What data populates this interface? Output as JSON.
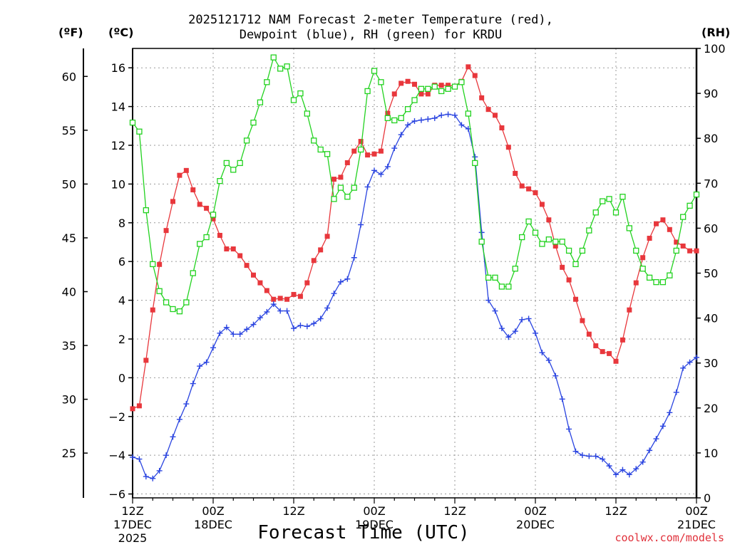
{
  "title_line1": "2025121712 NAM Forecast 2-meter Temperature (red),",
  "title_line2": "Dewpoint (blue), RH (green) for KRDU",
  "unit_f": "(ºF)",
  "unit_c": "(ºC)",
  "unit_rh": "(RH)",
  "xlabel": "Forecast Time (UTC)",
  "credit": "coolwx.com/models",
  "colors": {
    "temperature": "#e8373c",
    "dewpoint": "#2a44e0",
    "rh": "#22d21f",
    "grid": "#9a9a9a"
  },
  "chart_data": {
    "type": "line",
    "title": "2025121712 NAM Forecast 2-meter Temperature (red), Dewpoint (blue), RH (green) for KRDU",
    "xlabel": "Forecast Time (UTC)",
    "x_unit": "forecast hour",
    "xlim": [
      0,
      84
    ],
    "x_ticks": [
      {
        "hour": 0,
        "lines": [
          "12Z",
          "17DEC",
          "2025"
        ]
      },
      {
        "hour": 12,
        "lines": [
          "00Z",
          "18DEC"
        ]
      },
      {
        "hour": 24,
        "lines": [
          "12Z"
        ]
      },
      {
        "hour": 36,
        "lines": [
          "00Z",
          "19DEC"
        ]
      },
      {
        "hour": 48,
        "lines": [
          "12Z"
        ]
      },
      {
        "hour": 60,
        "lines": [
          "00Z",
          "20DEC"
        ]
      },
      {
        "hour": 72,
        "lines": [
          "12Z"
        ]
      },
      {
        "hour": 84,
        "lines": [
          "00Z",
          "21DEC"
        ]
      }
    ],
    "y_left_celsius": {
      "label": "(ºC)",
      "ylim": [
        -6.2,
        17
      ],
      "ticks": [
        -6,
        -4,
        -2,
        0,
        2,
        4,
        6,
        8,
        10,
        12,
        14,
        16
      ]
    },
    "y_left_fahrenheit": {
      "label": "(ºF)",
      "ticks": [
        25,
        30,
        35,
        40,
        45,
        50,
        55,
        60
      ]
    },
    "y_right_rh": {
      "label": "(RH)",
      "ylim": [
        0,
        100
      ],
      "ticks": [
        0,
        10,
        20,
        30,
        40,
        50,
        60,
        70,
        80,
        90,
        100
      ]
    },
    "grid": true,
    "series": [
      {
        "name": "Temperature",
        "axis": "celsius",
        "marker": "filled-square",
        "x": [
          0,
          1,
          2,
          3,
          4,
          5,
          6,
          7,
          8,
          9,
          10,
          11,
          12,
          13,
          14,
          15,
          16,
          17,
          18,
          19,
          20,
          21,
          22,
          23,
          24,
          25,
          26,
          27,
          28,
          29,
          30,
          31,
          32,
          33,
          34,
          35,
          36,
          37,
          38,
          39,
          40,
          41,
          42,
          43,
          44,
          45,
          46,
          47,
          48,
          49,
          50,
          51,
          52,
          53,
          54,
          55,
          56,
          57,
          58,
          59,
          60,
          61,
          62,
          63,
          64,
          65,
          66,
          67,
          68,
          69,
          70,
          71,
          72,
          73,
          74,
          75,
          76,
          77,
          78,
          79,
          80,
          81,
          82,
          83,
          84
        ],
        "y": [
          -1.6,
          -1.45,
          0.9,
          3.5,
          5.85,
          7.6,
          9.1,
          10.45,
          10.7,
          9.7,
          8.95,
          8.75,
          8.2,
          7.35,
          6.65,
          6.65,
          6.3,
          5.8,
          5.3,
          4.9,
          4.5,
          4.05,
          4.1,
          4.05,
          4.3,
          4.2,
          4.9,
          6.05,
          6.6,
          7.3,
          10.25,
          10.35,
          11.1,
          11.7,
          12.2,
          11.5,
          11.55,
          11.7,
          13.65,
          14.65,
          15.2,
          15.3,
          15.15,
          14.65,
          14.65,
          15.1,
          15.1,
          15.1,
          15.05,
          15.3,
          16.05,
          15.6,
          14.45,
          13.85,
          13.55,
          12.9,
          11.9,
          10.55,
          9.9,
          9.75,
          9.55,
          8.95,
          8.15,
          6.8,
          5.7,
          5.05,
          4.05,
          2.95,
          2.25,
          1.65,
          1.35,
          1.25,
          0.85,
          1.95,
          3.5,
          4.9,
          6.2,
          7.2,
          7.95,
          8.15,
          7.65,
          7.0,
          6.8,
          6.55,
          6.55
        ]
      },
      {
        "name": "Dewpoint",
        "axis": "celsius",
        "marker": "plus",
        "x": [
          0,
          1,
          2,
          3,
          4,
          5,
          6,
          7,
          8,
          9,
          10,
          11,
          12,
          13,
          14,
          15,
          16,
          17,
          18,
          19,
          20,
          21,
          22,
          23,
          24,
          25,
          26,
          27,
          28,
          29,
          30,
          31,
          32,
          33,
          34,
          35,
          36,
          37,
          38,
          39,
          40,
          41,
          42,
          43,
          44,
          45,
          46,
          47,
          48,
          49,
          50,
          51,
          52,
          53,
          54,
          55,
          56,
          57,
          58,
          59,
          60,
          61,
          62,
          63,
          64,
          65,
          66,
          67,
          68,
          69,
          70,
          71,
          72,
          73,
          74,
          75,
          76,
          77,
          78,
          79,
          80,
          81,
          82,
          83,
          84
        ],
        "y": [
          -4.1,
          -4.2,
          -5.1,
          -5.2,
          -4.8,
          -4.0,
          -3.05,
          -2.15,
          -1.35,
          -0.3,
          0.6,
          0.8,
          1.55,
          2.3,
          2.6,
          2.25,
          2.25,
          2.5,
          2.75,
          3.1,
          3.4,
          3.8,
          3.45,
          3.45,
          2.55,
          2.7,
          2.65,
          2.8,
          3.05,
          3.6,
          4.35,
          4.95,
          5.1,
          6.2,
          7.9,
          9.85,
          10.7,
          10.5,
          10.9,
          11.85,
          12.55,
          13.05,
          13.25,
          13.3,
          13.35,
          13.4,
          13.55,
          13.6,
          13.55,
          13.05,
          12.85,
          11.4,
          7.5,
          4.0,
          3.45,
          2.55,
          2.1,
          2.4,
          3.0,
          3.05,
          2.3,
          1.3,
          0.9,
          0.1,
          -1.1,
          -2.65,
          -3.8,
          -4.0,
          -4.05,
          -4.05,
          -4.2,
          -4.55,
          -5.0,
          -4.75,
          -5.0,
          -4.7,
          -4.35,
          -3.75,
          -3.15,
          -2.5,
          -1.8,
          -0.75,
          0.5,
          0.8,
          1.05
        ]
      },
      {
        "name": "RH",
        "axis": "rh",
        "marker": "open-square",
        "x": [
          0,
          1,
          2,
          3,
          4,
          5,
          6,
          7,
          8,
          9,
          10,
          11,
          12,
          13,
          14,
          15,
          16,
          17,
          18,
          19,
          20,
          21,
          22,
          23,
          24,
          25,
          26,
          27,
          28,
          29,
          30,
          31,
          32,
          33,
          34,
          35,
          36,
          37,
          38,
          39,
          40,
          41,
          42,
          43,
          44,
          45,
          46,
          47,
          48,
          49,
          50,
          51,
          52,
          53,
          54,
          55,
          56,
          57,
          58,
          59,
          60,
          61,
          62,
          63,
          64,
          65,
          66,
          67,
          68,
          69,
          70,
          71,
          72,
          73,
          74,
          75,
          76,
          77,
          78,
          79,
          80,
          81,
          82,
          83,
          84
        ],
        "y": [
          83.5,
          81.5,
          64,
          52,
          46,
          43.5,
          42,
          41.5,
          43.5,
          50,
          56.5,
          58,
          63,
          70.5,
          74.5,
          73,
          74.5,
          79.5,
          83.5,
          88,
          92.5,
          98,
          95.5,
          96,
          88.5,
          90,
          85.5,
          79.5,
          77.5,
          76.5,
          66.5,
          69,
          67,
          69,
          77.5,
          90.5,
          95,
          92.5,
          84.5,
          84,
          84.5,
          86.5,
          88.5,
          91,
          91,
          91.5,
          90.5,
          91,
          91.5,
          92.5,
          85.5,
          74.5,
          57,
          49,
          49,
          47,
          47,
          51,
          58,
          61.5,
          59,
          56.5,
          57.5,
          57,
          57,
          55,
          52,
          55,
          59.5,
          63.5,
          66,
          66.5,
          63.5,
          67,
          60,
          55,
          51,
          49,
          48,
          48,
          49.5,
          55,
          62.5,
          65,
          67.5
        ]
      }
    ]
  }
}
